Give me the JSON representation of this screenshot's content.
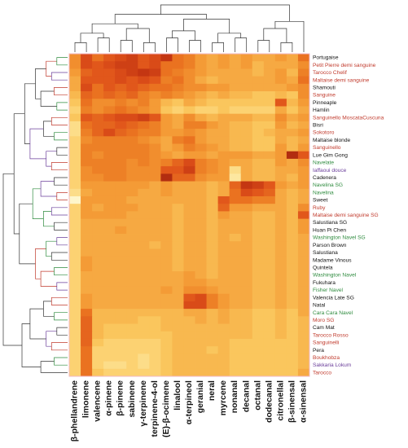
{
  "chart_data": {
    "type": "heatmap",
    "title": "",
    "xlabel": "",
    "ylabel": "",
    "dendrograms": {
      "rows": true,
      "columns": true
    },
    "columns": [
      "β-phellandrene",
      "limonene",
      "valencene",
      "α-pinene",
      "β-pinene",
      "sabinene",
      "γ-terpinene",
      "terpinene-4-ol",
      "(E)-β-ocimene",
      "linalool",
      "α-terpineol",
      "geranial",
      "neral",
      "myrcene",
      "nonanal",
      "decanal",
      "octanal",
      "dodecanal",
      "citronellal",
      "β-sinensal",
      "α-sinensal"
    ],
    "rows": [
      {
        "label": "Portugaise",
        "color": "#111111"
      },
      {
        "label": "Petit Pierre demi sanguine",
        "color": "#c0392b"
      },
      {
        "label": "Tarocco Chelif",
        "color": "#c0392b"
      },
      {
        "label": "Maltaise demi sanguine",
        "color": "#c0392b"
      },
      {
        "label": "Shamouti",
        "color": "#111111"
      },
      {
        "label": "Sanguine",
        "color": "#c0392b"
      },
      {
        "label": "Pinneaple",
        "color": "#111111"
      },
      {
        "label": "Hamlin",
        "color": "#111111"
      },
      {
        "label": "Sanguinello MoscataCuscuna",
        "color": "#c0392b"
      },
      {
        "label": "Bisri",
        "color": "#111111"
      },
      {
        "label": "Sokotoro",
        "color": "#c0392b"
      },
      {
        "label": "Maltaise blonde",
        "color": "#111111"
      },
      {
        "label": "Sanguinello",
        "color": "#c0392b"
      },
      {
        "label": "Lue Gim Gong",
        "color": "#111111"
      },
      {
        "label": "Navelate",
        "color": "#2e8b3e"
      },
      {
        "label": "Iaffaoui douce",
        "color": "#6a3d9a"
      },
      {
        "label": "Cadenera",
        "color": "#111111"
      },
      {
        "label": "Navelina SG",
        "color": "#2e8b3e"
      },
      {
        "label": "Navelina",
        "color": "#2e8b3e"
      },
      {
        "label": "Sweet",
        "color": "#111111"
      },
      {
        "label": "Ruby",
        "color": "#c0392b"
      },
      {
        "label": "Maltaise demi sanguine SG",
        "color": "#c0392b"
      },
      {
        "label": "Salustiana SG",
        "color": "#111111"
      },
      {
        "label": "Huan Pi Chen",
        "color": "#111111"
      },
      {
        "label": "Washington Navel SG",
        "color": "#2e8b3e"
      },
      {
        "label": "Parson Brown",
        "color": "#111111"
      },
      {
        "label": "Salustiana",
        "color": "#111111"
      },
      {
        "label": "Madame Vinous",
        "color": "#111111"
      },
      {
        "label": "Quintela",
        "color": "#111111"
      },
      {
        "label": "Washington Navel",
        "color": "#2e8b3e"
      },
      {
        "label": "Fukuhara",
        "color": "#111111"
      },
      {
        "label": "Fisher Navel",
        "color": "#2e8b3e"
      },
      {
        "label": "Valencia Late SG",
        "color": "#111111"
      },
      {
        "label": "Natal",
        "color": "#111111"
      },
      {
        "label": "Cara Cara Navel",
        "color": "#2e8b3e"
      },
      {
        "label": "Moro SG",
        "color": "#c0392b"
      },
      {
        "label": "Cam Mat",
        "color": "#111111"
      },
      {
        "label": "Tarocco Rosso",
        "color": "#c0392b"
      },
      {
        "label": "Sanguinelli",
        "color": "#c0392b"
      },
      {
        "label": "Pera",
        "color": "#111111"
      },
      {
        "label": "Boukhobza",
        "color": "#c0392b"
      },
      {
        "label": "Sakkaria Lokum",
        "color": "#6a3d9a"
      },
      {
        "label": "Tarocco",
        "color": "#c0392b"
      }
    ],
    "colorscale": [
      "#fffde0",
      "#fde9a3",
      "#fbca61",
      "#f5a13a",
      "#ec7a22",
      "#e0531a",
      "#c23412",
      "#8c1b0c"
    ],
    "value_range": [
      0,
      1
    ],
    "values": [
      [
        0.5,
        0.75,
        0.6,
        0.7,
        0.75,
        0.8,
        0.7,
        0.75,
        0.85,
        0.6,
        0.55,
        0.45,
        0.4,
        0.45,
        0.4,
        0.45,
        0.4,
        0.4,
        0.45,
        0.4,
        0.6
      ],
      [
        0.5,
        0.75,
        0.7,
        0.75,
        0.8,
        0.8,
        0.7,
        0.75,
        0.6,
        0.6,
        0.55,
        0.45,
        0.4,
        0.45,
        0.4,
        0.45,
        0.35,
        0.4,
        0.4,
        0.4,
        0.5
      ],
      [
        0.45,
        0.65,
        0.7,
        0.7,
        0.75,
        0.8,
        0.85,
        0.8,
        0.6,
        0.55,
        0.5,
        0.45,
        0.4,
        0.4,
        0.4,
        0.4,
        0.35,
        0.4,
        0.45,
        0.35,
        0.55
      ],
      [
        0.4,
        0.7,
        0.7,
        0.7,
        0.75,
        0.7,
        0.75,
        0.7,
        0.55,
        0.6,
        0.5,
        0.4,
        0.35,
        0.4,
        0.4,
        0.4,
        0.4,
        0.4,
        0.45,
        0.4,
        0.6
      ],
      [
        0.4,
        0.75,
        0.6,
        0.7,
        0.65,
        0.7,
        0.65,
        0.6,
        0.6,
        0.55,
        0.5,
        0.5,
        0.45,
        0.45,
        0.4,
        0.4,
        0.4,
        0.4,
        0.4,
        0.45,
        0.5
      ],
      [
        0.35,
        0.65,
        0.6,
        0.65,
        0.6,
        0.65,
        0.55,
        0.5,
        0.55,
        0.5,
        0.45,
        0.4,
        0.35,
        0.4,
        0.35,
        0.35,
        0.3,
        0.3,
        0.35,
        0.3,
        0.5
      ],
      [
        0.3,
        0.6,
        0.5,
        0.5,
        0.55,
        0.5,
        0.55,
        0.45,
        0.35,
        0.3,
        0.4,
        0.35,
        0.3,
        0.3,
        0.3,
        0.3,
        0.3,
        0.3,
        0.7,
        0.35,
        0.45
      ],
      [
        0.25,
        0.55,
        0.5,
        0.55,
        0.6,
        0.55,
        0.5,
        0.45,
        0.3,
        0.25,
        0.3,
        0.25,
        0.25,
        0.3,
        0.25,
        0.25,
        0.25,
        0.25,
        0.4,
        0.3,
        0.4
      ],
      [
        0.3,
        0.7,
        0.65,
        0.7,
        0.75,
        0.75,
        0.8,
        0.7,
        0.45,
        0.4,
        0.5,
        0.4,
        0.35,
        0.4,
        0.4,
        0.4,
        0.35,
        0.35,
        0.5,
        0.4,
        0.45
      ],
      [
        0.2,
        0.6,
        0.65,
        0.65,
        0.7,
        0.65,
        0.6,
        0.55,
        0.45,
        0.4,
        0.55,
        0.55,
        0.45,
        0.4,
        0.35,
        0.35,
        0.3,
        0.3,
        0.45,
        0.35,
        0.4
      ],
      [
        0.2,
        0.55,
        0.65,
        0.75,
        0.65,
        0.6,
        0.55,
        0.55,
        0.45,
        0.45,
        0.5,
        0.45,
        0.4,
        0.4,
        0.35,
        0.35,
        0.3,
        0.35,
        0.4,
        0.4,
        0.45
      ],
      [
        0.25,
        0.5,
        0.55,
        0.55,
        0.55,
        0.55,
        0.5,
        0.45,
        0.4,
        0.55,
        0.6,
        0.45,
        0.4,
        0.4,
        0.35,
        0.35,
        0.3,
        0.3,
        0.4,
        0.35,
        0.4
      ],
      [
        0.25,
        0.55,
        0.55,
        0.55,
        0.55,
        0.55,
        0.55,
        0.5,
        0.4,
        0.45,
        0.55,
        0.5,
        0.45,
        0.4,
        0.35,
        0.35,
        0.3,
        0.3,
        0.45,
        0.35,
        0.45
      ],
      [
        0.25,
        0.55,
        0.5,
        0.55,
        0.55,
        0.55,
        0.55,
        0.5,
        0.45,
        0.4,
        0.45,
        0.45,
        0.4,
        0.45,
        0.45,
        0.45,
        0.4,
        0.4,
        0.45,
        0.9,
        0.7
      ],
      [
        0.25,
        0.55,
        0.55,
        0.55,
        0.55,
        0.5,
        0.55,
        0.5,
        0.55,
        0.65,
        0.75,
        0.55,
        0.5,
        0.45,
        0.4,
        0.4,
        0.35,
        0.35,
        0.45,
        0.4,
        0.5
      ],
      [
        0.25,
        0.5,
        0.55,
        0.55,
        0.55,
        0.5,
        0.5,
        0.5,
        0.7,
        0.7,
        0.8,
        0.55,
        0.5,
        0.45,
        0.2,
        0.4,
        0.35,
        0.35,
        0.4,
        0.4,
        0.45
      ],
      [
        0.25,
        0.5,
        0.5,
        0.55,
        0.55,
        0.5,
        0.5,
        0.5,
        0.9,
        0.65,
        0.65,
        0.5,
        0.45,
        0.45,
        0.15,
        0.4,
        0.35,
        0.35,
        0.4,
        0.35,
        0.45
      ],
      [
        0.25,
        0.45,
        0.45,
        0.45,
        0.45,
        0.45,
        0.45,
        0.4,
        0.45,
        0.4,
        0.4,
        0.4,
        0.35,
        0.4,
        0.65,
        0.85,
        0.8,
        0.7,
        0.45,
        0.4,
        0.45
      ],
      [
        0.2,
        0.4,
        0.45,
        0.45,
        0.45,
        0.45,
        0.4,
        0.4,
        0.45,
        0.4,
        0.4,
        0.4,
        0.35,
        0.4,
        0.6,
        0.75,
        0.7,
        0.65,
        0.4,
        0.35,
        0.4
      ],
      [
        0.05,
        0.45,
        0.45,
        0.45,
        0.45,
        0.4,
        0.4,
        0.4,
        0.4,
        0.4,
        0.4,
        0.4,
        0.35,
        0.7,
        0.6,
        0.6,
        0.55,
        0.55,
        0.4,
        0.35,
        0.4
      ],
      [
        0.25,
        0.45,
        0.4,
        0.45,
        0.45,
        0.45,
        0.4,
        0.4,
        0.4,
        0.35,
        0.4,
        0.4,
        0.35,
        0.65,
        0.45,
        0.45,
        0.4,
        0.4,
        0.4,
        0.35,
        0.5
      ],
      [
        0.25,
        0.45,
        0.45,
        0.45,
        0.45,
        0.4,
        0.4,
        0.4,
        0.4,
        0.35,
        0.4,
        0.4,
        0.35,
        0.45,
        0.4,
        0.4,
        0.35,
        0.35,
        0.4,
        0.35,
        0.7
      ],
      [
        0.25,
        0.4,
        0.4,
        0.4,
        0.4,
        0.4,
        0.4,
        0.4,
        0.4,
        0.35,
        0.4,
        0.4,
        0.35,
        0.4,
        0.4,
        0.4,
        0.35,
        0.35,
        0.4,
        0.35,
        0.45
      ],
      [
        0.25,
        0.4,
        0.4,
        0.4,
        0.45,
        0.4,
        0.4,
        0.4,
        0.4,
        0.35,
        0.4,
        0.4,
        0.35,
        0.4,
        0.4,
        0.4,
        0.35,
        0.35,
        0.4,
        0.35,
        0.45
      ],
      [
        0.25,
        0.4,
        0.4,
        0.4,
        0.4,
        0.4,
        0.4,
        0.4,
        0.4,
        0.35,
        0.4,
        0.4,
        0.35,
        0.4,
        0.35,
        0.4,
        0.35,
        0.35,
        0.4,
        0.35,
        0.4
      ],
      [
        0.25,
        0.4,
        0.4,
        0.4,
        0.4,
        0.4,
        0.4,
        0.35,
        0.4,
        0.35,
        0.4,
        0.4,
        0.35,
        0.4,
        0.4,
        0.4,
        0.35,
        0.35,
        0.4,
        0.35,
        0.4
      ],
      [
        0.25,
        0.4,
        0.4,
        0.4,
        0.4,
        0.4,
        0.4,
        0.4,
        0.4,
        0.35,
        0.4,
        0.4,
        0.35,
        0.4,
        0.4,
        0.4,
        0.35,
        0.35,
        0.4,
        0.35,
        0.4
      ],
      [
        0.25,
        0.45,
        0.4,
        0.4,
        0.4,
        0.4,
        0.4,
        0.4,
        0.4,
        0.35,
        0.4,
        0.4,
        0.35,
        0.4,
        0.4,
        0.4,
        0.35,
        0.35,
        0.4,
        0.35,
        0.4
      ],
      [
        0.25,
        0.45,
        0.4,
        0.4,
        0.4,
        0.4,
        0.4,
        0.4,
        0.4,
        0.35,
        0.4,
        0.4,
        0.35,
        0.4,
        0.4,
        0.4,
        0.35,
        0.35,
        0.4,
        0.35,
        0.4
      ],
      [
        0.25,
        0.4,
        0.4,
        0.4,
        0.4,
        0.4,
        0.4,
        0.4,
        0.4,
        0.4,
        0.45,
        0.4,
        0.35,
        0.4,
        0.4,
        0.4,
        0.35,
        0.35,
        0.4,
        0.35,
        0.4
      ],
      [
        0.25,
        0.4,
        0.4,
        0.4,
        0.4,
        0.4,
        0.4,
        0.4,
        0.4,
        0.4,
        0.45,
        0.45,
        0.4,
        0.4,
        0.4,
        0.4,
        0.35,
        0.35,
        0.4,
        0.35,
        0.4
      ],
      [
        0.25,
        0.4,
        0.4,
        0.4,
        0.4,
        0.4,
        0.4,
        0.4,
        0.45,
        0.4,
        0.5,
        0.5,
        0.45,
        0.4,
        0.4,
        0.4,
        0.35,
        0.35,
        0.4,
        0.35,
        0.4
      ],
      [
        0.25,
        0.45,
        0.4,
        0.4,
        0.4,
        0.4,
        0.4,
        0.4,
        0.4,
        0.4,
        0.7,
        0.75,
        0.55,
        0.45,
        0.4,
        0.4,
        0.35,
        0.35,
        0.4,
        0.35,
        0.4
      ],
      [
        0.25,
        0.45,
        0.4,
        0.4,
        0.4,
        0.4,
        0.4,
        0.4,
        0.4,
        0.4,
        0.75,
        0.75,
        0.55,
        0.45,
        0.4,
        0.4,
        0.35,
        0.35,
        0.4,
        0.35,
        0.4
      ],
      [
        0.25,
        0.6,
        0.35,
        0.35,
        0.35,
        0.35,
        0.35,
        0.35,
        0.35,
        0.35,
        0.4,
        0.4,
        0.35,
        0.4,
        0.35,
        0.35,
        0.3,
        0.3,
        0.35,
        0.3,
        0.4
      ],
      [
        0.25,
        0.65,
        0.35,
        0.35,
        0.35,
        0.35,
        0.3,
        0.3,
        0.35,
        0.35,
        0.35,
        0.4,
        0.35,
        0.4,
        0.35,
        0.35,
        0.3,
        0.3,
        0.35,
        0.3,
        0.35
      ],
      [
        0.25,
        0.65,
        0.35,
        0.3,
        0.3,
        0.3,
        0.3,
        0.3,
        0.35,
        0.35,
        0.35,
        0.35,
        0.35,
        0.35,
        0.35,
        0.35,
        0.3,
        0.3,
        0.35,
        0.3,
        0.35
      ],
      [
        0.25,
        0.65,
        0.35,
        0.3,
        0.3,
        0.3,
        0.3,
        0.3,
        0.3,
        0.35,
        0.35,
        0.35,
        0.35,
        0.35,
        0.35,
        0.35,
        0.3,
        0.3,
        0.35,
        0.3,
        0.35
      ],
      [
        0.25,
        0.65,
        0.3,
        0.25,
        0.25,
        0.25,
        0.25,
        0.25,
        0.3,
        0.35,
        0.35,
        0.35,
        0.35,
        0.35,
        0.3,
        0.3,
        0.3,
        0.3,
        0.3,
        0.3,
        0.35
      ],
      [
        0.25,
        0.6,
        0.25,
        0.25,
        0.25,
        0.25,
        0.25,
        0.25,
        0.3,
        0.35,
        0.35,
        0.35,
        0.3,
        0.35,
        0.3,
        0.3,
        0.3,
        0.3,
        0.3,
        0.3,
        0.35
      ],
      [
        0.25,
        0.6,
        0.25,
        0.25,
        0.25,
        0.25,
        0.2,
        0.25,
        0.3,
        0.35,
        0.35,
        0.35,
        0.35,
        0.35,
        0.3,
        0.3,
        0.3,
        0.3,
        0.3,
        0.3,
        0.35
      ],
      [
        0.25,
        0.6,
        0.25,
        0.2,
        0.2,
        0.25,
        0.2,
        0.25,
        0.3,
        0.35,
        0.35,
        0.35,
        0.35,
        0.35,
        0.3,
        0.3,
        0.3,
        0.3,
        0.3,
        0.3,
        0.35
      ],
      [
        0.25,
        0.6,
        0.3,
        0.25,
        0.25,
        0.25,
        0.25,
        0.25,
        0.3,
        0.35,
        0.35,
        0.35,
        0.35,
        0.35,
        0.3,
        0.3,
        0.3,
        0.3,
        0.3,
        0.3,
        0.4
      ]
    ]
  }
}
